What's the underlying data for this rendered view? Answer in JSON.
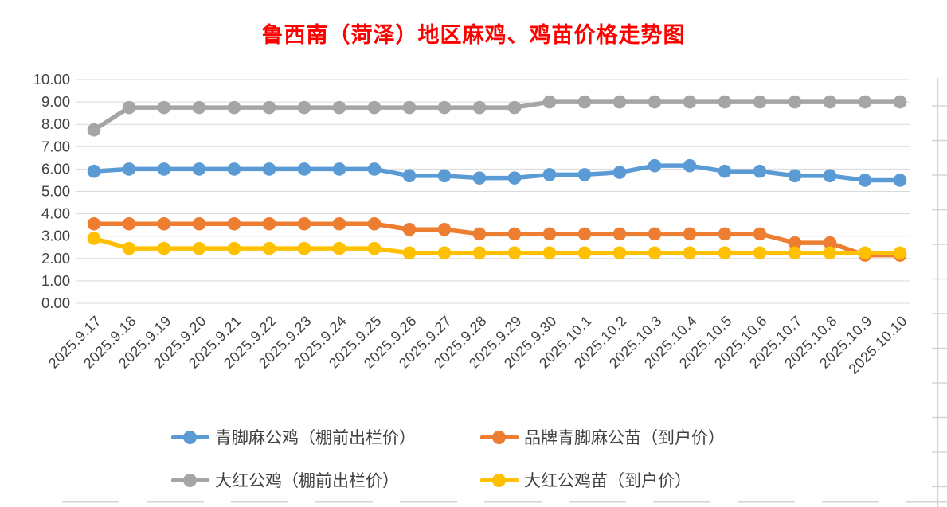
{
  "window": {
    "background": "#FFFFFF"
  },
  "chart_data": {
    "type": "line",
    "title": "鲁西南（菏泽）地区麻鸡、鸡苗价格走势图",
    "title_color": "#FF0000",
    "categories": [
      "2025.9.17",
      "2025.9.18",
      "2025.9.19",
      "2025.9.20",
      "2025.9.21",
      "2025.9.22",
      "2025.9.23",
      "2025.9.24",
      "2025.9.25",
      "2025.9.26",
      "2025.9.27",
      "2025.9.28",
      "2025.9.29",
      "2025.9.30",
      "2025.10.1",
      "2025.10.2",
      "2025.10.3",
      "2025.10.4",
      "2025.10.5",
      "2025.10.6",
      "2025.10.7",
      "2025.10.8",
      "2025.10.9",
      "2025.10.10"
    ],
    "series": [
      {
        "name": "青脚麻公鸡（棚前出栏价）",
        "color": "#5B9BD5",
        "values": [
          5.9,
          6.0,
          6.0,
          6.0,
          6.0,
          6.0,
          6.0,
          6.0,
          6.0,
          5.7,
          5.7,
          5.6,
          5.6,
          5.75,
          5.75,
          5.85,
          6.15,
          6.15,
          5.9,
          5.9,
          5.7,
          5.7,
          5.5,
          5.5
        ]
      },
      {
        "name": "品牌青脚麻公苗（到户价）",
        "color": "#ED7D31",
        "values": [
          3.55,
          3.55,
          3.55,
          3.55,
          3.55,
          3.55,
          3.55,
          3.55,
          3.55,
          3.3,
          3.3,
          3.1,
          3.1,
          3.1,
          3.1,
          3.1,
          3.1,
          3.1,
          3.1,
          3.1,
          2.7,
          2.7,
          2.15,
          2.15
        ]
      },
      {
        "name": "大红公鸡（棚前出栏价）",
        "color": "#A5A5A5",
        "values": [
          7.75,
          8.75,
          8.75,
          8.75,
          8.75,
          8.75,
          8.75,
          8.75,
          8.75,
          8.75,
          8.75,
          8.75,
          8.75,
          9.0,
          9.0,
          9.0,
          9.0,
          9.0,
          9.0,
          9.0,
          9.0,
          9.0,
          9.0,
          9.0
        ]
      },
      {
        "name": "大红公鸡苗（到户价）",
        "color": "#FFC000",
        "values": [
          2.9,
          2.45,
          2.45,
          2.45,
          2.45,
          2.45,
          2.45,
          2.45,
          2.45,
          2.25,
          2.25,
          2.25,
          2.25,
          2.25,
          2.25,
          2.25,
          2.25,
          2.25,
          2.25,
          2.25,
          2.25,
          2.25,
          2.25,
          2.25
        ]
      }
    ],
    "y_axis": {
      "min": 0,
      "max": 10,
      "step": 1,
      "tick_labels": [
        "0.00",
        "1.00",
        "2.00",
        "3.00",
        "4.00",
        "5.00",
        "6.00",
        "7.00",
        "8.00",
        "9.00",
        "10.00"
      ],
      "label_color": "#404040"
    },
    "x_axis": {
      "label_color": "#404040",
      "label_rotation_deg": 45
    },
    "grid": {
      "show": true,
      "color": "#D9D9D9"
    },
    "decor": {
      "sheet_line_color": "#D5D3D3"
    },
    "legend": {
      "position": "bottom",
      "columns": 2,
      "text_color": "#404040"
    }
  }
}
